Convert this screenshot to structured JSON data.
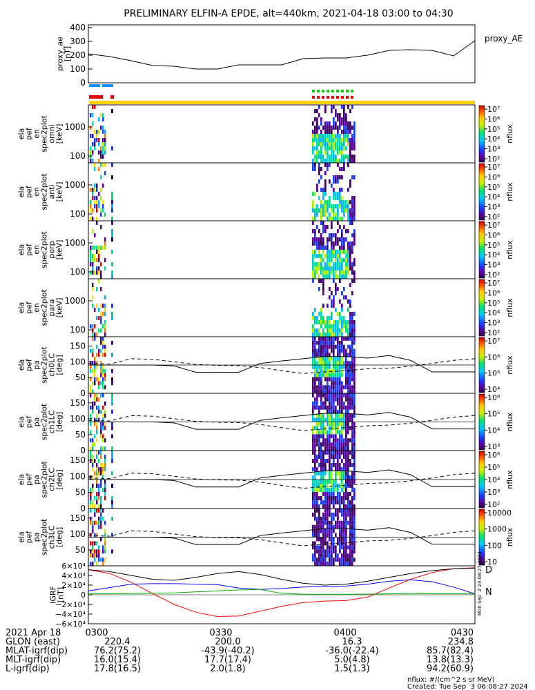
{
  "title": "PRELIMINARY ELFIN-A EPDE, alt=440km, 2021-04-18 03:00 to 04:30",
  "chart_data": [
    {
      "type": "line",
      "id": "proxy_ae",
      "ylabel_lines": [
        "proxy_ae",
        "[nT]"
      ],
      "legend": "proxy_AE",
      "yticks": [
        "400",
        "300",
        "200",
        "100",
        "0"
      ],
      "ylim": [
        0,
        420
      ],
      "x": [
        "03:00",
        "03:05",
        "03:10",
        "03:15",
        "03:20",
        "03:25",
        "03:30",
        "03:35",
        "03:40",
        "03:45",
        "03:50",
        "03:55",
        "04:00",
        "04:05",
        "04:10",
        "04:15",
        "04:20",
        "04:25",
        "04:30"
      ],
      "values": [
        210,
        190,
        160,
        125,
        120,
        100,
        100,
        130,
        130,
        130,
        175,
        180,
        180,
        200,
        235,
        240,
        235,
        195,
        305
      ]
    },
    {
      "type": "heatmap",
      "id": "en_omni",
      "ylabel_lines": [
        "ela",
        "pef",
        "en",
        "spec2plot",
        "omni",
        "[keV]"
      ],
      "yticks": [
        "1000",
        "100"
      ],
      "colorbar_label": "nflux",
      "colorbar_ticks": [
        "10⁷",
        "10⁶",
        "10⁵",
        "10⁴",
        "10³",
        "10²"
      ]
    },
    {
      "type": "heatmap",
      "id": "en_anti",
      "ylabel_lines": [
        "ela",
        "pef",
        "en",
        "spec2plot",
        "anti",
        "[keV]"
      ],
      "yticks": [
        "1000",
        "100"
      ],
      "colorbar_label": "nflux",
      "colorbar_ticks": [
        "10⁷",
        "10⁶",
        "10⁵",
        "10⁴",
        "10³",
        "10²"
      ]
    },
    {
      "type": "heatmap",
      "id": "en_perp",
      "ylabel_lines": [
        "ela",
        "pef",
        "en",
        "spec2plot",
        "perp",
        "[keV]"
      ],
      "yticks": [
        "1000",
        "100"
      ],
      "colorbar_label": "nflux",
      "colorbar_ticks": [
        "10⁷",
        "10⁶",
        "10⁵",
        "10⁴",
        "10³",
        "10²"
      ]
    },
    {
      "type": "heatmap",
      "id": "en_para",
      "ylabel_lines": [
        "ela",
        "pef",
        "en",
        "spec2plot",
        "para",
        "[keV]"
      ],
      "yticks": [
        "1000",
        "100"
      ],
      "colorbar_label": "nflux",
      "colorbar_ticks": [
        "10⁷",
        "10⁶",
        "10⁵",
        "10⁴",
        "10³",
        "10²"
      ]
    },
    {
      "type": "heatmap",
      "id": "pa_ch0",
      "ylabel_lines": [
        "ela",
        "pef",
        "pa",
        "spec2plot",
        "ch0LC",
        "[deg]"
      ],
      "yticks": [
        "150",
        "100",
        "50",
        "0"
      ],
      "colorbar_label": "nflux",
      "colorbar_ticks": [
        "10⁷",
        "10⁶",
        "10⁵",
        "10⁴"
      ]
    },
    {
      "type": "heatmap",
      "id": "pa_ch1",
      "ylabel_lines": [
        "ela",
        "pef",
        "pa",
        "spec2plot",
        "ch1LC",
        "[deg]"
      ],
      "yticks": [
        "150",
        "100",
        "50",
        "0"
      ],
      "colorbar_label": "nflux",
      "colorbar_ticks": [
        "10⁶",
        "10⁵",
        "10⁴",
        "10³"
      ]
    },
    {
      "type": "heatmap",
      "id": "pa_ch2",
      "ylabel_lines": [
        "ela",
        "pef",
        "pa",
        "spec2plot",
        "ch2LC",
        "[deg]"
      ],
      "yticks": [
        "150",
        "100",
        "50",
        "0"
      ],
      "colorbar_label": "nflux",
      "colorbar_ticks": [
        "10⁶",
        "10⁵",
        "10⁴",
        "10³",
        "10²"
      ]
    },
    {
      "type": "heatmap",
      "id": "pa_ch3",
      "ylabel_lines": [
        "ela",
        "pef",
        "pa",
        "spec2plot",
        "ch3LC",
        "[deg]"
      ],
      "yticks": [
        "150",
        "100",
        "50"
      ],
      "colorbar_label": "nflux",
      "colorbar_ticks": [
        "10000",
        "1000",
        "100",
        "10"
      ]
    },
    {
      "type": "line",
      "id": "igrf",
      "ylabel_lines": [
        "IGRF",
        "[nT]"
      ],
      "yticks": [
        "6×10⁴",
        "4×10⁴",
        "2×10⁴",
        "0",
        "−2×10⁴",
        "−4×10⁴",
        "−6×10⁴"
      ],
      "ylim": [
        -60000,
        60000
      ],
      "legend": [
        "D",
        "N"
      ],
      "x": [
        "03:00",
        "03:05",
        "03:10",
        "03:15",
        "03:20",
        "03:25",
        "03:30",
        "03:35",
        "03:40",
        "03:45",
        "03:50",
        "03:55",
        "04:00",
        "04:05",
        "04:10",
        "04:15",
        "04:20",
        "04:25",
        "04:30"
      ],
      "series": [
        {
          "name": "D",
          "color": "#ff0000",
          "values": [
            52000,
            44000,
            26000,
            2000,
            -20000,
            -36000,
            -45000,
            -44000,
            -34000,
            -24000,
            -16000,
            -13000,
            -12000,
            -5000,
            14000,
            32000,
            46000,
            54000,
            56000
          ]
        },
        {
          "color": "#0000ff",
          "values": [
            8000,
            15000,
            22000,
            23000,
            23000,
            22000,
            21000,
            14000,
            11000,
            13000,
            16000,
            17000,
            18000,
            22000,
            28000,
            31000,
            27000,
            16000,
            2000
          ]
        },
        {
          "name": "N",
          "color": "#00b000",
          "values": [
            2000,
            2000,
            2500,
            3000,
            4000,
            6000,
            8000,
            10000,
            11000,
            3000,
            1000,
            1000,
            1000,
            1500,
            2000,
            2500,
            2000,
            2000,
            2000
          ]
        },
        {
          "color": "#000000",
          "values": [
            52000,
            48000,
            40000,
            32000,
            30000,
            36000,
            44000,
            48000,
            42000,
            32000,
            24000,
            20000,
            22000,
            28000,
            36000,
            44000,
            50000,
            54000,
            55000
          ]
        }
      ]
    }
  ],
  "xaxis": {
    "row_labels": [
      "2021 Apr 18",
      "GLON (east)",
      "MLAT-igrf(dip)",
      "MLT-igrf(dip)",
      "L-igrf(dip)"
    ],
    "columns": [
      {
        "time": "0300",
        "values": [
          "220.4",
          "76.2(75.2)",
          "16.0(15.4)",
          "17.8(16.5)"
        ]
      },
      {
        "time": "0330",
        "values": [
          "200.0",
          "-43.9(-40.2)",
          "17.7(17.4)",
          "2.0(1.8)"
        ]
      },
      {
        "time": "0400",
        "values": [
          "16.3",
          "-36.0(-22.4)",
          "5.0(4.8)",
          "1.5(1.3)"
        ]
      },
      {
        "time": "0430",
        "values": [
          "234.8",
          "85.7(82.4)",
          "13.8(13.3)",
          "94.2(60.9)"
        ]
      }
    ]
  },
  "footer": {
    "units": "nflux: #/(cm^2 s sr MeV)",
    "created": "Created: Tue Sep  3 06:08:27 2024",
    "side_stamp": "Mon Sep  2 23:08:27 2024"
  }
}
